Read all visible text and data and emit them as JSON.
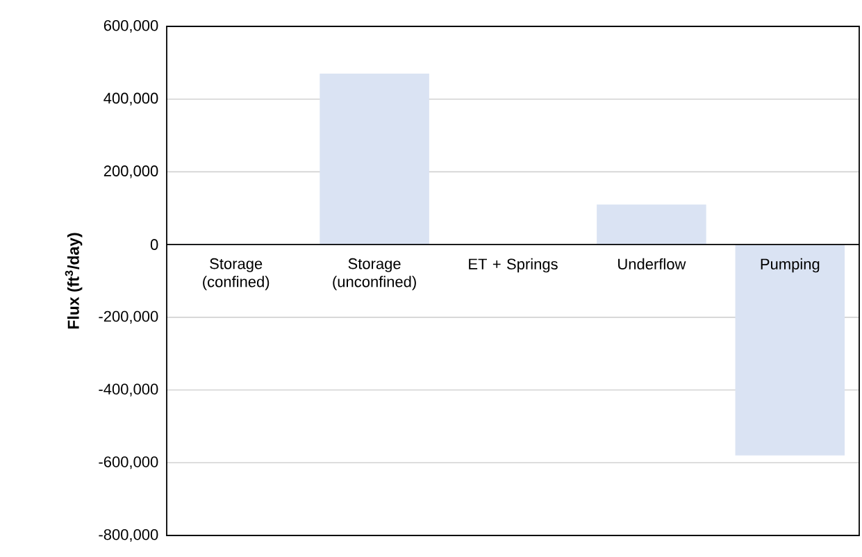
{
  "chart_data": {
    "type": "bar",
    "ylabel": "Flux (ft$^{3}$/day)",
    "categories": [
      "Storage (confined)",
      "Storage (unconfined)",
      "ET + Springs",
      "Underflow",
      "Pumping"
    ],
    "values": [
      2000,
      470000,
      0,
      110000,
      -580000
    ],
    "color": "#dae3f3",
    "ylim": [
      -800000,
      600000
    ],
    "yticks": [
      {
        "value": -800000,
        "label": "-800,000"
      },
      {
        "value": -600000,
        "label": "-600,000"
      },
      {
        "value": -400000,
        "label": "-400,000"
      },
      {
        "value": -200000,
        "label": "-200,000"
      },
      0,
      {
        "value": 200000,
        "label": "200,000"
      },
      {
        "value": 400000,
        "label": "400,000"
      },
      {
        "value": 600000,
        "label": "600,000"
      }
    ],
    "grid": "y"
  }
}
